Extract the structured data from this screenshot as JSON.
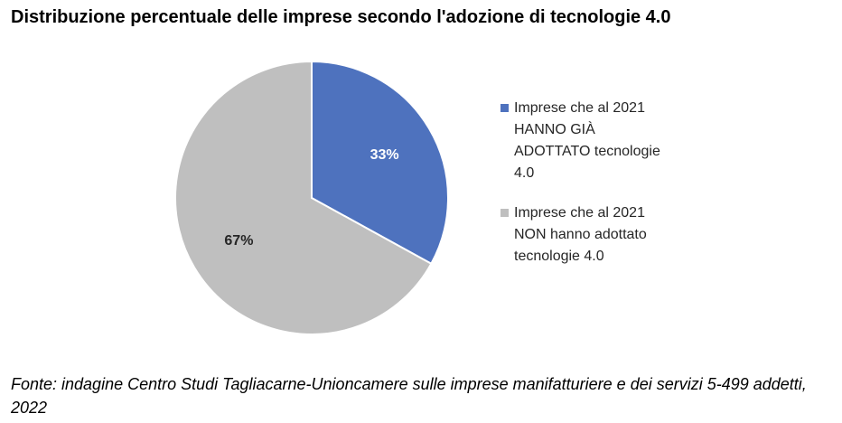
{
  "title": "Distribuzione percentuale delle imprese secondo l'adozione di tecnologie 4.0",
  "chart_data": {
    "type": "pie",
    "title": "Distribuzione percentuale delle imprese secondo l'adozione di tecnologie 4.0",
    "slices": [
      {
        "label": "Imprese che al 2021 HANNO GIÀ ADOTTATO tecnologie 4.0",
        "value": 33,
        "data_label": "33%",
        "color": "#4E72BE"
      },
      {
        "label": "Imprese che al 2021 NON hanno adottato tecnologie 4.0",
        "value": 67,
        "data_label": "67%",
        "color": "#BFBFBF"
      }
    ],
    "legend_position": "right",
    "start_angle": "12 o'clock, clockwise"
  },
  "legend": {
    "items": [
      {
        "label": "Imprese che al 2021 HANNO GIÀ ADOTTATO tecnologie 4.0",
        "color": "#4E72BE"
      },
      {
        "label": "Imprese che al 2021 NON hanno adottato tecnologie 4.0",
        "color": "#BFBFBF"
      }
    ]
  },
  "footnote": "Fonte: indagine Centro Studi Tagliacarne-Unioncamere sulle imprese manifatturiere e dei servizi 5-499 addetti, 2022"
}
